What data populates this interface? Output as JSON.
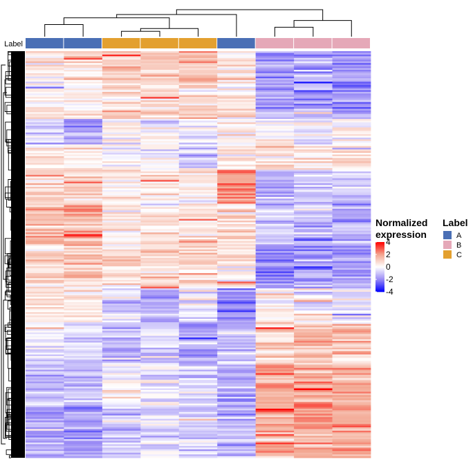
{
  "chart_data": {
    "type": "heatmap",
    "title": "",
    "annotation_row_label": "Label",
    "columns": [
      {
        "id": "s1",
        "group": "A"
      },
      {
        "id": "s2",
        "group": "A"
      },
      {
        "id": "s3",
        "group": "C"
      },
      {
        "id": "s4",
        "group": "C"
      },
      {
        "id": "s5",
        "group": "C"
      },
      {
        "id": "s6",
        "group": "A"
      },
      {
        "id": "s7",
        "group": "B"
      },
      {
        "id": "s8",
        "group": "B"
      },
      {
        "id": "s9",
        "group": "B"
      }
    ],
    "column_dendrogram_merges": [
      {
        "left": "s3",
        "right": "s4",
        "height": 0.2
      },
      {
        "left": "s4s3",
        "right": "s5",
        "height": 0.3
      },
      {
        "left": "s7",
        "right": "s8",
        "height": 0.35
      },
      {
        "left": "s1",
        "right": "s2",
        "height": 0.45
      },
      {
        "left": "s78",
        "right": "s9",
        "height": 0.6
      },
      {
        "left": "s12",
        "right": "s345",
        "height": 0.7
      },
      {
        "left": "s12345",
        "right": "s6",
        "height": 0.82
      },
      {
        "left": "s123456",
        "right": "s789",
        "height": 1.0
      }
    ],
    "row_count": 240,
    "row_blocks": [
      {
        "rows": 20,
        "means": [
          0.6,
          0.8,
          1.1,
          1.2,
          1.3,
          0.6,
          -1.8,
          -1.4,
          -2.0
        ]
      },
      {
        "rows": 20,
        "means": [
          0.4,
          0.2,
          0.9,
          0.8,
          1.0,
          0.5,
          -1.5,
          -1.6,
          -1.8
        ]
      },
      {
        "rows": 15,
        "means": [
          -0.8,
          -1.6,
          0.2,
          -0.1,
          -0.4,
          0.3,
          0.2,
          -0.3,
          0.4
        ]
      },
      {
        "rows": 15,
        "means": [
          0.3,
          0.5,
          -0.2,
          -0.4,
          -0.9,
          0.4,
          0.5,
          0.3,
          0.6
        ]
      },
      {
        "rows": 20,
        "means": [
          1.1,
          0.9,
          0.5,
          0.4,
          0.3,
          2.5,
          -1.2,
          -1.1,
          -0.8
        ]
      },
      {
        "rows": 25,
        "means": [
          1.4,
          1.6,
          0.4,
          0.6,
          0.7,
          0.9,
          -1.0,
          -1.2,
          -1.5
        ]
      },
      {
        "rows": 25,
        "means": [
          1.0,
          1.0,
          0.7,
          0.9,
          0.8,
          0.6,
          -2.0,
          -1.7,
          -1.8
        ]
      },
      {
        "rows": 20,
        "means": [
          0.5,
          0.4,
          -0.8,
          -1.5,
          -0.3,
          -2.2,
          0.2,
          0.0,
          -0.3
        ]
      },
      {
        "rows": 25,
        "means": [
          -0.2,
          -0.6,
          -1.2,
          -0.8,
          -1.4,
          -1.0,
          1.0,
          1.4,
          1.2
        ]
      },
      {
        "rows": 25,
        "means": [
          -1.2,
          -1.1,
          -0.3,
          -0.5,
          -0.8,
          -1.4,
          1.6,
          1.8,
          1.6
        ]
      },
      {
        "rows": 30,
        "means": [
          -1.4,
          -1.6,
          -0.6,
          -0.7,
          -0.9,
          -1.2,
          1.8,
          2.0,
          1.9
        ]
      }
    ],
    "color_scale": {
      "name": "Normalized expression",
      "title_lines": [
        "Normalized",
        "expression"
      ],
      "min": -4,
      "max": 4,
      "ticks": [
        "4",
        "2",
        "0",
        "-2",
        "-4"
      ],
      "tick_values": [
        4,
        2,
        0,
        -2,
        -4
      ],
      "low_color": "#0000ff",
      "mid_color": "#ffffff",
      "high_color": "#ff0000",
      "low_soft": "#9b8cf5",
      "high_soft": "#f3a58f"
    },
    "legend": {
      "title": "Label",
      "items": [
        {
          "label": "A",
          "color": "#4a6fb5"
        },
        {
          "label": "B",
          "color": "#e5a8b8"
        },
        {
          "label": "C",
          "color": "#e3a02f"
        }
      ]
    }
  }
}
